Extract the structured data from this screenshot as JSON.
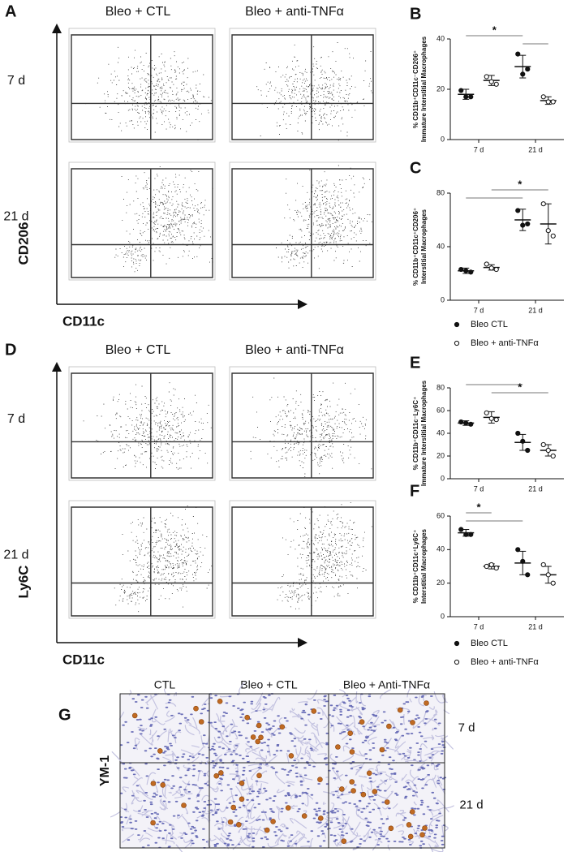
{
  "flow": [
    {
      "panel": "A",
      "columns": [
        "Bleo + CTL",
        "Bleo + anti-TNFα"
      ],
      "rows": [
        "7 d",
        "21 d"
      ],
      "y_label": "CD206",
      "x_label": "CD11c"
    },
    {
      "panel": "D",
      "columns": [
        "Bleo + CTL",
        "Bleo + anti-TNFα"
      ],
      "rows": [
        "7 d",
        "21 d"
      ],
      "y_label": "Ly6C",
      "x_label": "CD11c"
    }
  ],
  "chart_data": [
    {
      "type": "dot",
      "panel": "B",
      "ylabel": [
        "% CD11b⁺CD11c⁻CD206⁺",
        "Immature Interstitial Macrophages"
      ],
      "categories": [
        "7 d",
        "21 d"
      ],
      "ylim": [
        0,
        40
      ],
      "yticks": [
        0,
        20,
        40
      ],
      "series": [
        {
          "marker": "filled",
          "color": "#111111",
          "points": [
            [
              19.5,
              17,
              17
            ],
            [
              34,
              28,
              26
            ]
          ],
          "mean": [
            18,
            29
          ],
          "sd": [
            2,
            4.5
          ]
        },
        {
          "marker": "open",
          "color": "#111111",
          "points": [
            [
              25,
              22,
              23
            ],
            [
              17,
              15,
              15
            ]
          ],
          "mean": [
            23.5,
            15.5
          ],
          "sd": [
            2,
            1.5
          ]
        }
      ],
      "comparisons": [
        {
          "groups": [
            [
              0,
              0
            ],
            [
              1,
              0
            ]
          ],
          "label": "*"
        },
        {
          "groups": [
            [
              1,
              0
            ],
            [
              1,
              1
            ]
          ]
        }
      ]
    },
    {
      "type": "dot",
      "panel": "C",
      "ylabel": [
        "% CD11b⁺CD11c⁺CD206⁺",
        "Interstitial Macrophages"
      ],
      "categories": [
        "7 d",
        "21 d"
      ],
      "ylim": [
        0,
        80
      ],
      "yticks": [
        0,
        40,
        80
      ],
      "series": [
        {
          "name": "Bleo CTL",
          "marker": "filled",
          "color": "#111111",
          "points": [
            [
              23,
              21,
              22
            ],
            [
              67,
              57,
              56
            ]
          ],
          "mean": [
            22,
            60
          ],
          "sd": [
            2,
            8
          ]
        },
        {
          "name": "Bleo + anti-TNFα",
          "marker": "open",
          "color": "#111111",
          "points": [
            [
              27,
              23,
              24
            ],
            [
              72,
              48,
              52
            ]
          ],
          "mean": [
            24.5,
            57
          ],
          "sd": [
            2,
            15
          ]
        }
      ],
      "comparisons": [
        {
          "groups": [
            [
              0,
              1
            ],
            [
              1,
              1
            ]
          ],
          "label": "*"
        },
        {
          "groups": [
            [
              0,
              0
            ],
            [
              1,
              0
            ]
          ]
        }
      ],
      "legend": true
    },
    {
      "type": "dot",
      "panel": "E",
      "ylabel": [
        "% CD11b⁺CD11c⁻Ly6C⁺",
        "Immature Interstitial Macrophages"
      ],
      "categories": [
        "7 d",
        "21 d"
      ],
      "ylim": [
        0,
        80
      ],
      "yticks": [
        0,
        20,
        40,
        60,
        80
      ],
      "series": [
        {
          "marker": "filled",
          "color": "#111111",
          "points": [
            [
              50,
              48,
              49
            ],
            [
              40,
              25,
              33
            ]
          ],
          "mean": [
            49,
            32
          ],
          "sd": [
            2,
            7
          ]
        },
        {
          "marker": "open",
          "color": "#111111",
          "points": [
            [
              58,
              52,
              53
            ],
            [
              30,
              20,
              25
            ]
          ],
          "mean": [
            54,
            25
          ],
          "sd": [
            5,
            5
          ]
        }
      ],
      "comparisons": [
        {
          "groups": [
            [
              0,
              0
            ],
            [
              1,
              0
            ]
          ]
        },
        {
          "groups": [
            [
              0,
              1
            ],
            [
              1,
              1
            ]
          ],
          "label": "*"
        }
      ]
    },
    {
      "type": "dot",
      "panel": "F",
      "ylabel": [
        "% CD11b⁺CD11c⁺Ly6C⁺",
        "Interstitial Macrophages"
      ],
      "categories": [
        "7 d",
        "21 d"
      ],
      "ylim": [
        0,
        60
      ],
      "yticks": [
        0,
        20,
        40,
        60
      ],
      "series": [
        {
          "name": "Bleo CTL",
          "marker": "filled",
          "color": "#111111",
          "points": [
            [
              52,
              49,
              49
            ],
            [
              40,
              25,
              33
            ]
          ],
          "mean": [
            50,
            32
          ],
          "sd": [
            2,
            7
          ]
        },
        {
          "name": "Bleo + anti-TNFα",
          "marker": "open",
          "color": "#111111",
          "points": [
            [
              30,
              29,
              31
            ],
            [
              31,
              20,
              25
            ]
          ],
          "mean": [
            30,
            25
          ],
          "sd": [
            1.5,
            5
          ]
        }
      ],
      "comparisons": [
        {
          "groups": [
            [
              0,
              0
            ],
            [
              0,
              1
            ]
          ],
          "label": "*"
        },
        {
          "groups": [
            [
              0,
              0
            ],
            [
              1,
              0
            ]
          ]
        }
      ],
      "legend": true
    }
  ],
  "histology": {
    "panel": "G",
    "stain": "YM-1",
    "columns": [
      "CTL",
      "Bleo + CTL",
      "Bleo + Anti-TNFα"
    ],
    "rows": [
      "7 d",
      "21 d"
    ]
  }
}
